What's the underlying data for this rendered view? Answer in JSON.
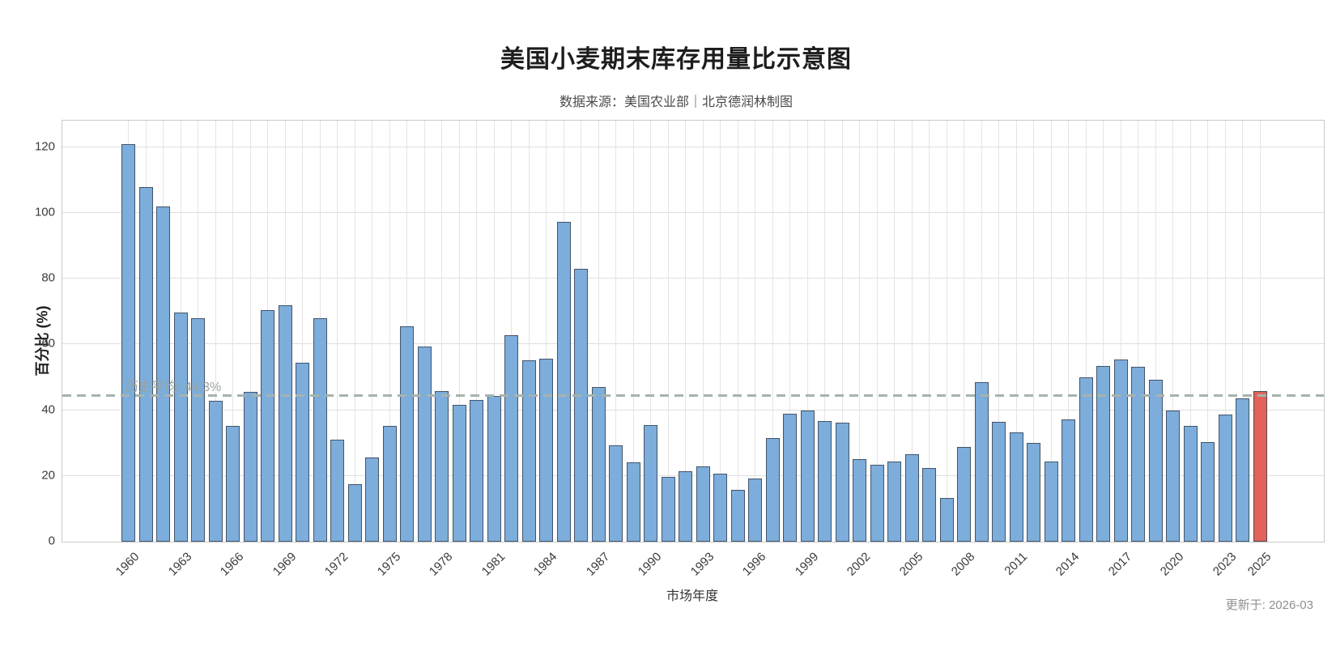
{
  "title": "美国小麦期末库存用量比示意图",
  "subtitle": "数据来源：美国农业部｜北京德润林制图",
  "footer": {
    "updated_label": "更新于: 2026-03"
  },
  "chart_data": {
    "type": "bar",
    "title": "美国小麦期末库存用量比示意图",
    "subtitle": "数据来源：美国农业部｜北京德润林制图",
    "xlabel": "市场年度",
    "ylabel": "百分比 (%)",
    "ylim": [
      0,
      128
    ],
    "yticks": [
      0,
      20,
      40,
      60,
      80,
      100,
      120
    ],
    "xticks": [
      1960,
      1963,
      1966,
      1969,
      1972,
      1975,
      1978,
      1981,
      1984,
      1987,
      1990,
      1993,
      1996,
      1999,
      2002,
      2005,
      2008,
      2011,
      2014,
      2017,
      2020,
      2023,
      2025
    ],
    "grid": true,
    "legend_position": "none",
    "categories": [
      1960,
      1961,
      1962,
      1963,
      1964,
      1965,
      1966,
      1967,
      1968,
      1969,
      1970,
      1971,
      1972,
      1973,
      1974,
      1975,
      1976,
      1977,
      1978,
      1979,
      1980,
      1981,
      1982,
      1983,
      1984,
      1985,
      1986,
      1987,
      1988,
      1989,
      1990,
      1991,
      1992,
      1993,
      1994,
      1995,
      1996,
      1997,
      1998,
      1999,
      2000,
      2001,
      2002,
      2003,
      2004,
      2005,
      2006,
      2007,
      2008,
      2009,
      2010,
      2011,
      2012,
      2013,
      2014,
      2015,
      2016,
      2017,
      2018,
      2019,
      2020,
      2021,
      2022,
      2023,
      2024,
      2025
    ],
    "values": [
      120.9,
      107.8,
      101.9,
      69.7,
      68.0,
      42.8,
      35.1,
      45.5,
      70.5,
      72.0,
      54.5,
      67.9,
      31.0,
      17.4,
      25.7,
      35.1,
      65.5,
      59.4,
      45.8,
      41.7,
      43.2,
      44.4,
      62.8,
      55.2,
      55.6,
      97.2,
      83.0,
      47.0,
      29.4,
      24.1,
      35.5,
      19.7,
      21.4,
      23.0,
      20.6,
      15.7,
      19.3,
      31.4,
      39.0,
      39.8,
      36.6,
      36.1,
      25.1,
      23.3,
      24.3,
      26.5,
      22.4,
      13.3,
      28.7,
      48.6,
      36.4,
      33.3,
      30.0,
      24.3,
      37.2,
      50.0,
      53.3,
      55.5,
      53.1,
      49.3,
      40.0,
      35.3,
      30.4,
      38.6,
      43.5,
      45.9
    ],
    "highlight_year": 2025,
    "highlight_index": 65,
    "average_line": {
      "value": 44.3,
      "label": "历史平均: 44.3%"
    },
    "colors": {
      "bar_fill": "#7caddb",
      "bar_border": "#44546a",
      "highlight_fill": "#e2625a",
      "grid": "#dedede",
      "average_line": "#a7b3ad",
      "title_text": "#1d1d1d",
      "subtitle_text": "#4b4b4b",
      "updated_text": "#8f8f8f"
    }
  }
}
